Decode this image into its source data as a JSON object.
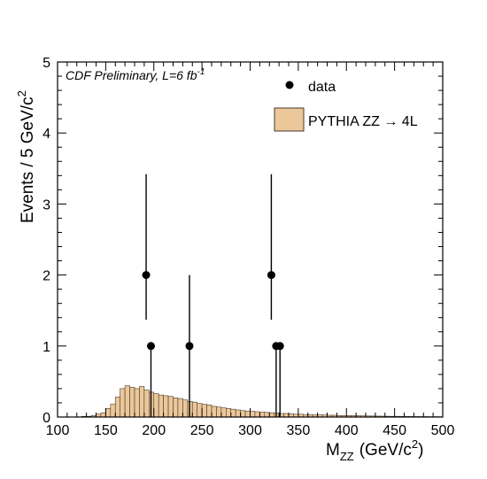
{
  "chart_data": {
    "type": "bar",
    "title": "",
    "annotation": {
      "prefix": "CDF Preliminary, L=6 fb",
      "superscript": "-1"
    },
    "xlabel": {
      "main": "M",
      "sub": "ZZ",
      "unit": "(GeV/c",
      "unit_sup": "2",
      "unit_close": ")"
    },
    "ylabel": {
      "main": "Events / 5 GeV/c",
      "sup": "2"
    },
    "xlim": [
      100,
      500
    ],
    "ylim": [
      0,
      5
    ],
    "xticks": [
      "100",
      "150",
      "200",
      "250",
      "300",
      "350",
      "400",
      "450",
      "500"
    ],
    "yticks": [
      "0",
      "1",
      "2",
      "3",
      "4",
      "5"
    ],
    "grid": false,
    "legend_position": "top-right",
    "legend": {
      "data_label": "data",
      "mc_label_prefix": "PYTHIA ZZ ",
      "mc_label_arrow": "→",
      "mc_label_suffix": " 4L"
    },
    "colors": {
      "mc_fill": "#ebc79a",
      "mc_edge": "#4a3a28",
      "data": "#000000"
    },
    "series": [
      {
        "name": "PYTHIA ZZ → 4L",
        "kind": "histogram",
        "bin_width": 5,
        "x_start": 100,
        "values": [
          0.0,
          0.0,
          0.0,
          0.0,
          0.0,
          0.01,
          0.01,
          0.02,
          0.04,
          0.06,
          0.12,
          0.18,
          0.28,
          0.4,
          0.44,
          0.42,
          0.4,
          0.43,
          0.38,
          0.35,
          0.33,
          0.31,
          0.3,
          0.29,
          0.27,
          0.26,
          0.24,
          0.22,
          0.21,
          0.19,
          0.18,
          0.17,
          0.15,
          0.14,
          0.13,
          0.12,
          0.11,
          0.1,
          0.09,
          0.085,
          0.08,
          0.075,
          0.07,
          0.065,
          0.06,
          0.055,
          0.05,
          0.05,
          0.045,
          0.04,
          0.04,
          0.035,
          0.035,
          0.03,
          0.03,
          0.03,
          0.025,
          0.025,
          0.02,
          0.02,
          0.02,
          0.02,
          0.018,
          0.016,
          0.015,
          0.014,
          0.013,
          0.012,
          0.011,
          0.01,
          0.01,
          0.009,
          0.008,
          0.008,
          0.007,
          0.006,
          0.006,
          0.005,
          0.005,
          0.004
        ]
      },
      {
        "name": "data",
        "kind": "points",
        "points": [
          {
            "x": 192,
            "y": 2,
            "err_low": 1.37,
            "err_high": 3.42
          },
          {
            "x": 197,
            "y": 1,
            "err_low": 0.0,
            "err_high": 1.0
          },
          {
            "x": 237,
            "y": 1,
            "err_low": 0.0,
            "err_high": 2.0
          },
          {
            "x": 322,
            "y": 2,
            "err_low": 1.37,
            "err_high": 3.42
          },
          {
            "x": 327,
            "y": 1,
            "err_low": 0.0,
            "err_high": 1.0
          },
          {
            "x": 331,
            "y": 1,
            "err_low": 0.0,
            "err_high": 1.0
          }
        ]
      }
    ]
  }
}
